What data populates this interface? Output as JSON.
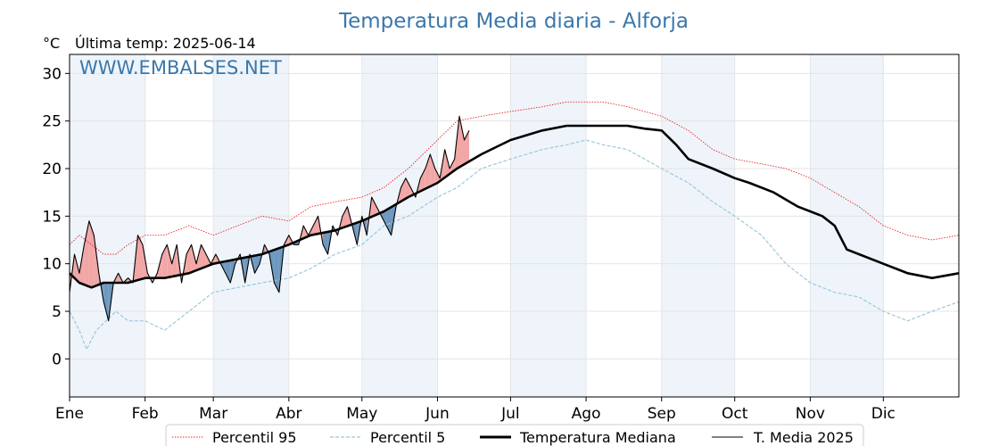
{
  "header": {
    "title": "Temperatura Media diaria - Alforja",
    "unit_label": "°C",
    "last_temp_label": "Última temp: 2025-06-14",
    "watermark": "WWW.EMBALSES.NET"
  },
  "colors": {
    "title": "#3a77ab",
    "p95": "#e8242a",
    "p5": "#9cc8dc",
    "median": "#000000",
    "current": "#000000",
    "warm_fill": "#f2a6a6",
    "cold_fill": "#6e98c0",
    "month_shade": "#eef4fa"
  },
  "chart_data": {
    "type": "line",
    "title": "Temperatura Media diaria - Alforja",
    "ylabel": "°C",
    "xlabel": "",
    "ylim": [
      -4,
      32
    ],
    "xlim": [
      1,
      366
    ],
    "grid": true,
    "legend_position": "bottom",
    "y_ticks": [
      30,
      25,
      20,
      15,
      10,
      5,
      0
    ],
    "months": [
      {
        "label": "Ene",
        "day": 1
      },
      {
        "label": "Feb",
        "day": 32
      },
      {
        "label": "Mar",
        "day": 60
      },
      {
        "label": "Abr",
        "day": 91
      },
      {
        "label": "May",
        "day": 121
      },
      {
        "label": "Jun",
        "day": 152
      },
      {
        "label": "Jul",
        "day": 182
      },
      {
        "label": "Ago",
        "day": 213
      },
      {
        "label": "Sep",
        "day": 244
      },
      {
        "label": "Oct",
        "day": 274
      },
      {
        "label": "Nov",
        "day": 305
      },
      {
        "label": "Dic",
        "day": 335
      }
    ],
    "series": [
      {
        "name": "Percentil 95",
        "style": "dotted",
        "x": [
          1,
          5,
          10,
          15,
          20,
          25,
          32,
          40,
          50,
          60,
          70,
          80,
          91,
          100,
          110,
          121,
          130,
          140,
          152,
          160,
          170,
          182,
          195,
          205,
          213,
          220,
          230,
          244,
          255,
          265,
          274,
          285,
          295,
          305,
          315,
          325,
          335,
          345,
          355,
          366
        ],
        "y": [
          12,
          13,
          12,
          11,
          11,
          12,
          13,
          13,
          14,
          13,
          14,
          15,
          14.5,
          16,
          16.5,
          17,
          18,
          20,
          23,
          25,
          25.5,
          26,
          26.5,
          27,
          27,
          27,
          26.5,
          25.5,
          24,
          22,
          21,
          20.5,
          20,
          19,
          17.5,
          16,
          14,
          13,
          12.5,
          13
        ]
      },
      {
        "name": "Percentil 5",
        "style": "dashed",
        "x": [
          1,
          5,
          8,
          12,
          16,
          20,
          25,
          32,
          40,
          50,
          60,
          70,
          80,
          91,
          100,
          110,
          121,
          130,
          140,
          152,
          160,
          170,
          182,
          195,
          205,
          213,
          220,
          230,
          244,
          255,
          265,
          274,
          285,
          295,
          305,
          315,
          325,
          335,
          345,
          355,
          366
        ],
        "y": [
          5,
          3,
          1,
          3,
          4,
          5,
          4,
          4,
          3,
          5,
          7,
          7.5,
          8,
          8.5,
          9.5,
          11,
          12,
          14,
          15,
          17,
          18,
          20,
          21,
          22,
          22.5,
          23,
          22.5,
          22,
          20,
          18.5,
          16.5,
          15,
          13,
          10,
          8,
          7,
          6.5,
          5,
          4,
          5,
          6
        ]
      },
      {
        "name": "Temperatura Mediana",
        "style": "solid-thick",
        "x": [
          1,
          5,
          10,
          15,
          20,
          25,
          32,
          40,
          50,
          60,
          70,
          80,
          91,
          100,
          110,
          121,
          130,
          140,
          152,
          160,
          170,
          182,
          195,
          205,
          213,
          220,
          230,
          237,
          244,
          250,
          255,
          265,
          274,
          280,
          290,
          300,
          305,
          310,
          315,
          320,
          325,
          335,
          345,
          355,
          366
        ],
        "y": [
          9,
          8,
          7.5,
          8,
          8,
          8,
          8.5,
          8.5,
          9,
          10,
          10.5,
          11,
          12,
          13,
          13.5,
          14.5,
          15.5,
          17,
          18.5,
          20,
          21.5,
          23,
          24,
          24.5,
          24.5,
          24.5,
          24.5,
          24.2,
          24,
          22.5,
          21,
          20,
          19,
          18.5,
          17.5,
          16,
          15.5,
          15,
          14,
          11.5,
          11,
          10,
          9,
          8.5,
          9
        ]
      },
      {
        "name": "T. Media 2025",
        "style": "solid-thin",
        "x": [
          1,
          3,
          5,
          7,
          9,
          11,
          13,
          15,
          17,
          19,
          21,
          23,
          25,
          27,
          29,
          31,
          33,
          35,
          37,
          39,
          41,
          43,
          45,
          47,
          49,
          51,
          53,
          55,
          57,
          59,
          61,
          63,
          65,
          67,
          69,
          71,
          73,
          75,
          77,
          79,
          81,
          83,
          85,
          87,
          89,
          91,
          93,
          95,
          97,
          99,
          101,
          103,
          105,
          107,
          109,
          111,
          113,
          115,
          117,
          119,
          121,
          123,
          125,
          127,
          129,
          131,
          133,
          135,
          137,
          139,
          141,
          143,
          145,
          147,
          149,
          151,
          153,
          155,
          157,
          159,
          161,
          163,
          165
        ],
        "y": [
          7,
          11,
          9,
          12,
          14.5,
          13,
          9,
          6,
          4,
          8,
          9,
          8,
          8.5,
          8,
          13,
          12,
          9,
          8,
          9,
          11,
          12,
          10,
          12,
          8,
          11,
          12,
          10,
          12,
          11,
          10,
          11,
          10,
          9,
          8,
          10,
          11,
          8,
          11,
          9,
          10,
          12,
          11,
          8,
          7,
          12,
          13,
          12,
          12,
          14,
          13,
          14,
          15,
          12,
          11,
          14,
          13,
          15,
          16,
          14,
          12,
          15,
          13,
          17,
          16,
          15,
          14,
          13,
          16,
          18,
          19,
          18,
          17,
          19,
          20,
          21.5,
          20,
          19,
          22,
          20,
          21,
          25.5,
          23,
          24
        ]
      }
    ],
    "fill_annotation": [
      {
        "name": "above_median",
        "color": "warm_fill"
      },
      {
        "name": "below_median",
        "color": "cold_fill"
      }
    ]
  },
  "legend": {
    "items": [
      {
        "label": "Percentil 95"
      },
      {
        "label": "Percentil 5"
      },
      {
        "label": "Temperatura Mediana"
      },
      {
        "label": "T. Media 2025"
      }
    ]
  }
}
